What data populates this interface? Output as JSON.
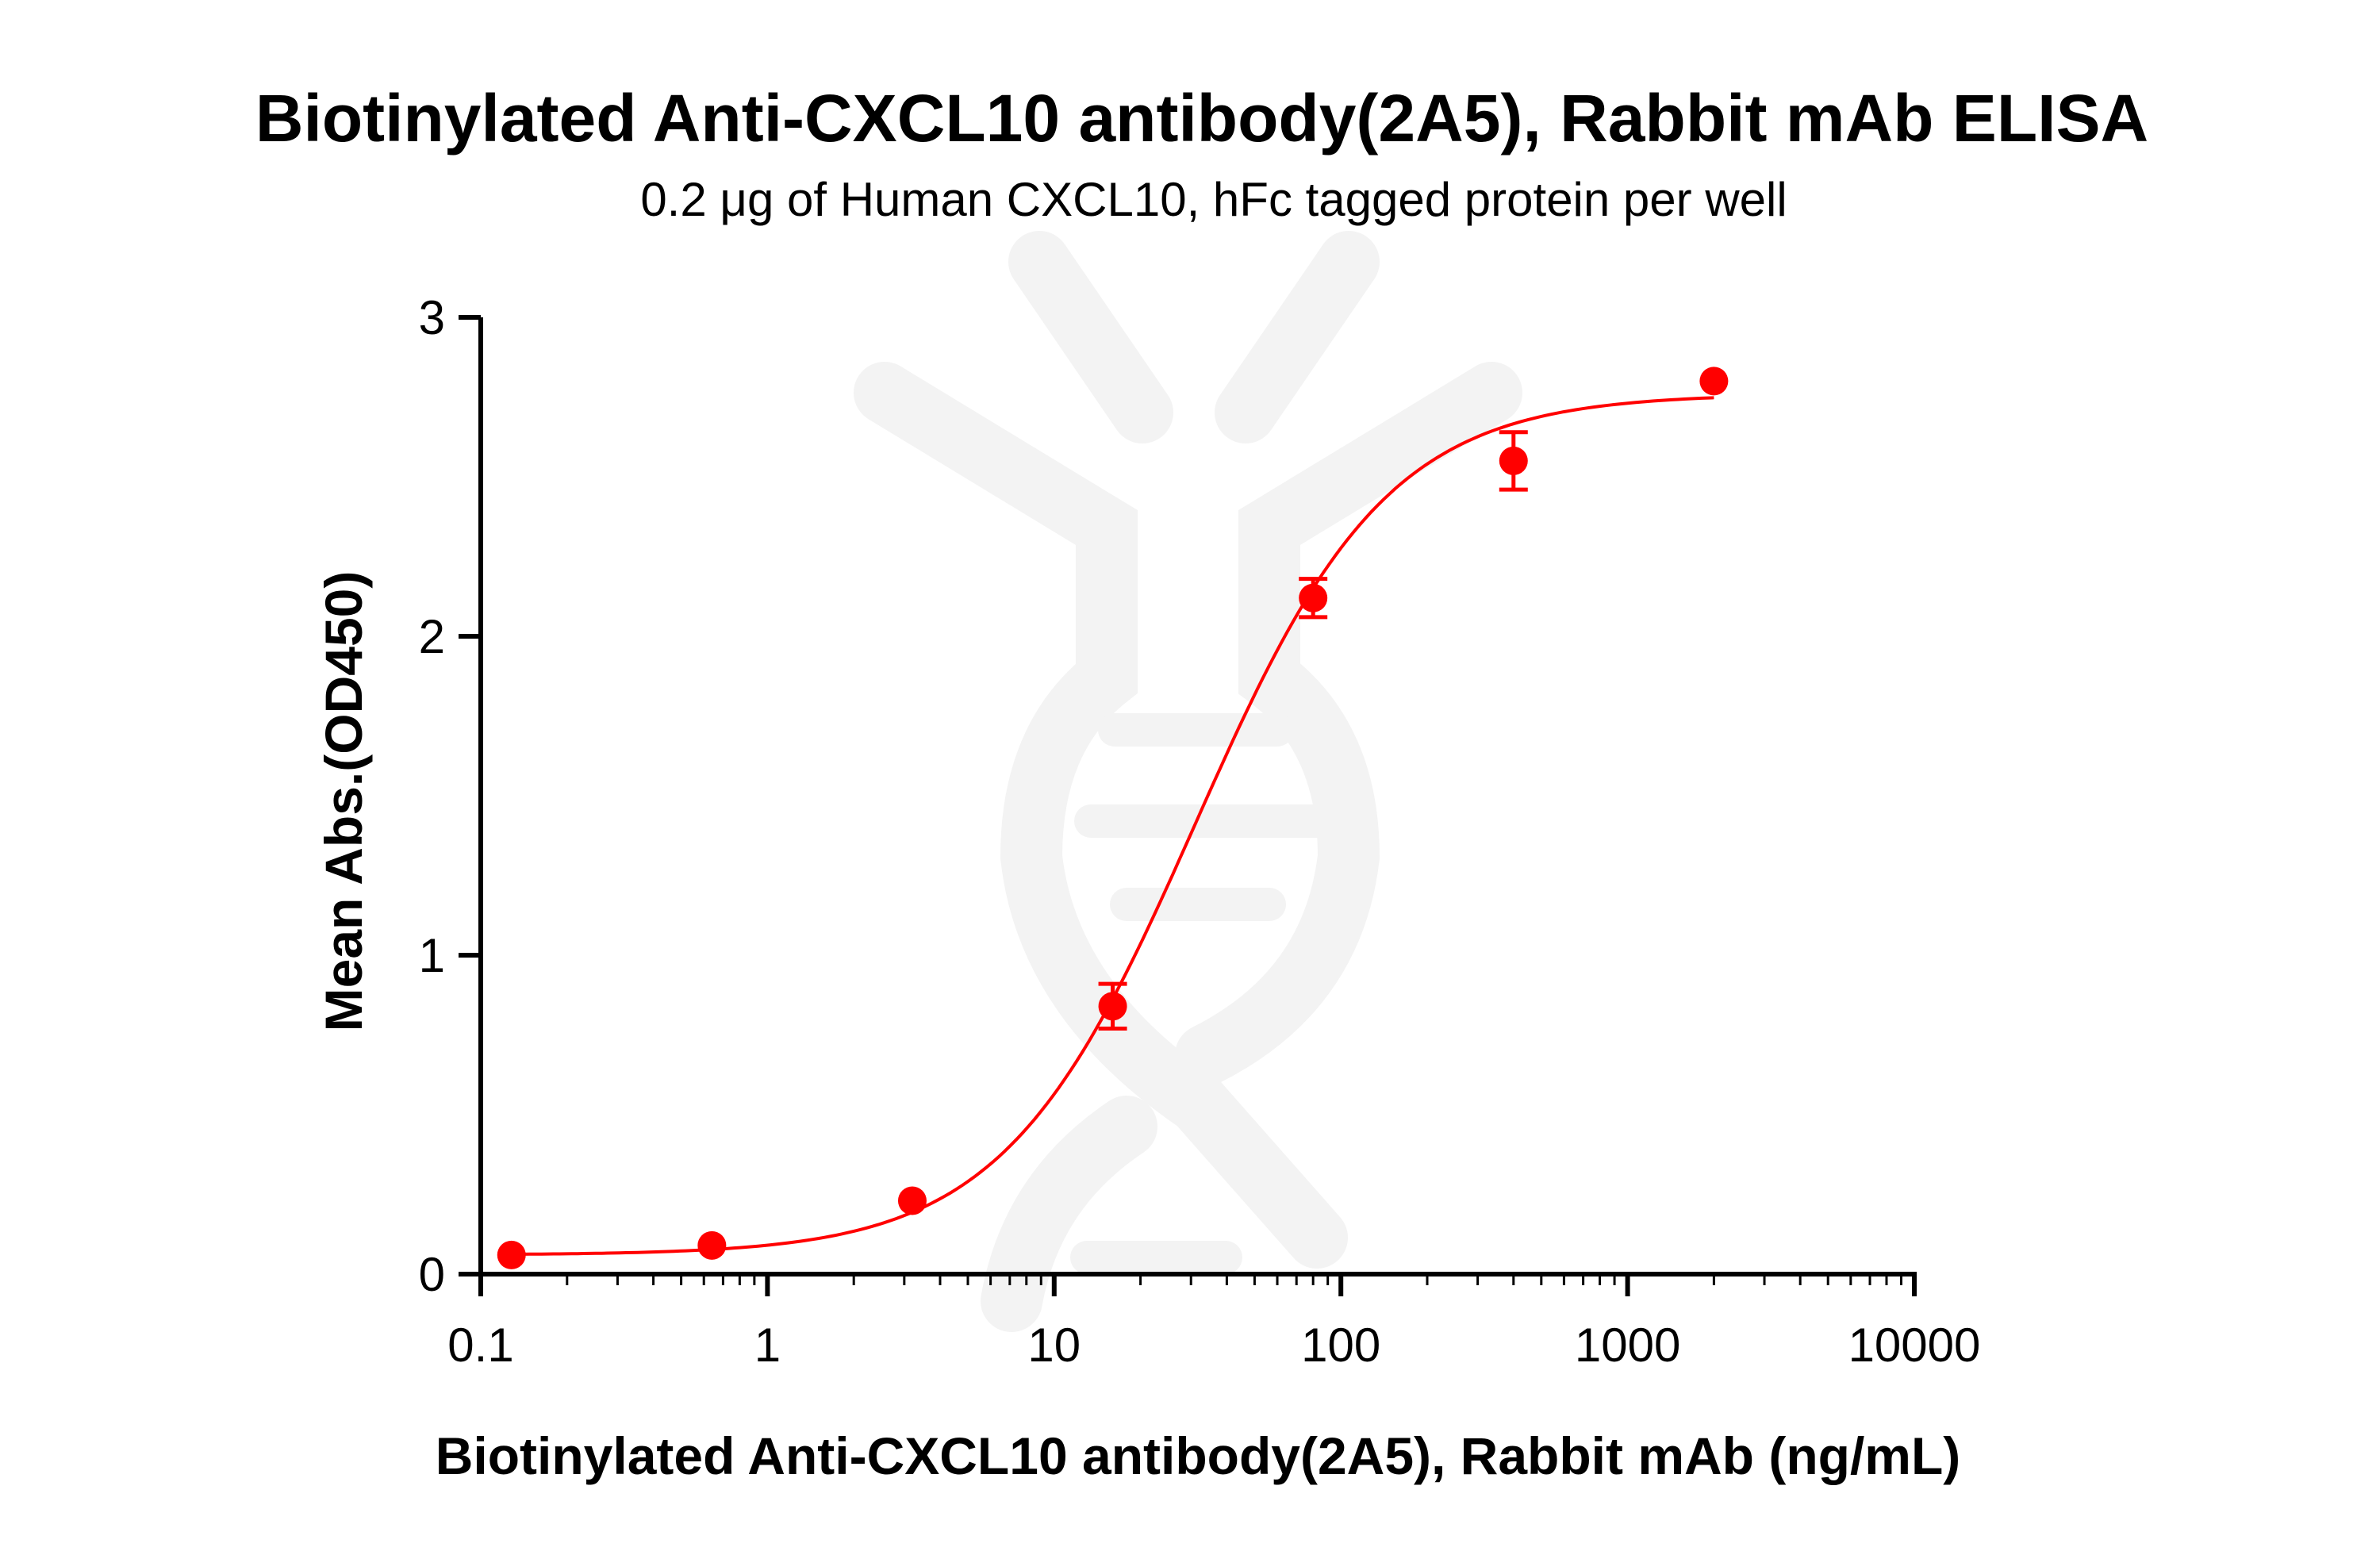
{
  "chart_data": {
    "type": "scatter",
    "title": "Biotinylated Anti-CXCL10 antibody(2A5), Rabbit mAb ELISA",
    "subtitle": "0.2 μg of Human CXCL10, hFc tagged protein per well",
    "xlabel": "Biotinylated Anti-CXCL10 antibody(2A5), Rabbit mAb (ng/mL)",
    "ylabel": "Mean Abs.(OD450)",
    "xscale": "log",
    "xlim": [
      0.1,
      10000
    ],
    "ylim": [
      0,
      3
    ],
    "x_ticks": [
      "0.1",
      "1",
      "10",
      "100",
      "1000",
      "10000"
    ],
    "y_ticks": [
      "0",
      "1",
      "2",
      "3"
    ],
    "grid": false,
    "color": "#ff0000",
    "series": [
      {
        "x": [
          0.128,
          0.64,
          3.2,
          16,
          80,
          400,
          2000
        ],
        "y": [
          0.06,
          0.09,
          0.23,
          0.84,
          2.12,
          2.55,
          2.8
        ],
        "error": [
          0,
          0,
          0,
          0.07,
          0.06,
          0.09,
          0
        ]
      }
    ],
    "fit_curve": "sigmoidal"
  }
}
